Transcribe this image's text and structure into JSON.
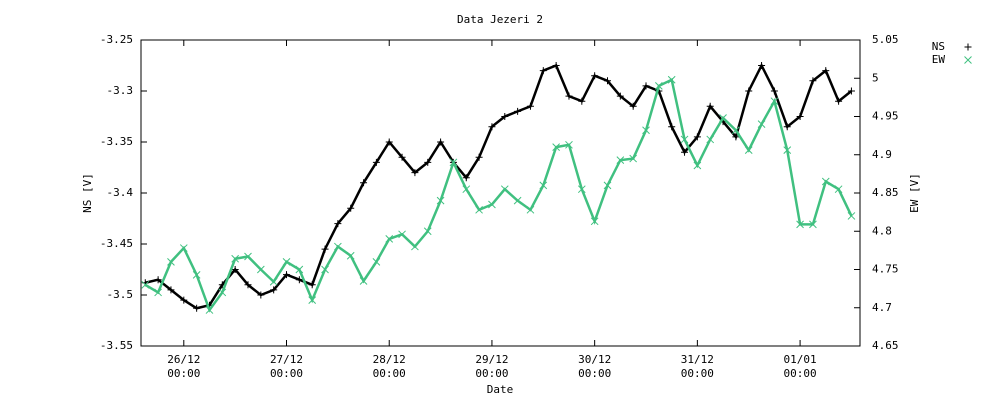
{
  "chart_data": {
    "type": "line",
    "title": "Data Jezeri 2",
    "x_label": "Date",
    "y_label": "NS [V]",
    "y2_label": "EW [V]",
    "xlim": [
      "25/12 14:00",
      "01/01 14:00"
    ],
    "xticks": [
      "26/12 00:00",
      "27/12 00:00",
      "28/12 00:00",
      "29/12 00:00",
      "30/12 00:00",
      "31/12 00:00",
      "01/01 00:00"
    ],
    "ylim": [
      -3.55,
      -3.25
    ],
    "yticks": [
      -3.55,
      -3.5,
      -3.45,
      -3.4,
      -3.35,
      -3.3,
      -3.25
    ],
    "y2lim": [
      4.65,
      5.05
    ],
    "y2ticks": [
      4.65,
      4.7,
      4.75,
      4.8,
      4.85,
      4.9,
      4.95,
      5,
      5.05
    ],
    "grid": false,
    "legend": "top-right",
    "x": [
      "25/12 15:00",
      "25/12 18:00",
      "25/12 21:00",
      "26/12 00:00",
      "26/12 03:00",
      "26/12 06:00",
      "26/12 09:00",
      "26/12 12:00",
      "26/12 15:00",
      "26/12 18:00",
      "26/12 21:00",
      "27/12 00:00",
      "27/12 03:00",
      "27/12 06:00",
      "27/12 09:00",
      "27/12 12:00",
      "27/12 15:00",
      "27/12 18:00",
      "27/12 21:00",
      "28/12 00:00",
      "28/12 03:00",
      "28/12 06:00",
      "28/12 09:00",
      "28/12 12:00",
      "28/12 15:00",
      "28/12 18:00",
      "28/12 21:00",
      "29/12 00:00",
      "29/12 03:00",
      "29/12 06:00",
      "29/12 09:00",
      "29/12 12:00",
      "29/12 15:00",
      "29/12 18:00",
      "29/12 21:00",
      "30/12 00:00",
      "30/12 03:00",
      "30/12 06:00",
      "30/12 09:00",
      "30/12 12:00",
      "30/12 15:00",
      "30/12 18:00",
      "30/12 21:00",
      "31/12 00:00",
      "31/12 03:00",
      "31/12 06:00",
      "31/12 09:00",
      "31/12 12:00",
      "31/12 15:00",
      "31/12 18:00",
      "31/12 21:00",
      "01/01 00:00",
      "01/01 03:00",
      "01/01 06:00",
      "01/01 09:00",
      "01/01 12:00"
    ],
    "series": [
      {
        "name": "NS",
        "color": "#000000",
        "marker": "+",
        "values": [
          -3.488,
          -3.485,
          -3.495,
          -3.505,
          -3.513,
          -3.51,
          -3.49,
          -3.475,
          -3.49,
          -3.5,
          -3.495,
          -3.48,
          -3.485,
          -3.49,
          -3.455,
          -3.43,
          -3.415,
          -3.39,
          -3.37,
          -3.35,
          -3.365,
          -3.38,
          -3.37,
          -3.35,
          -3.37,
          -3.385,
          -3.365,
          -3.335,
          -3.325,
          -3.32,
          -3.315,
          -3.28,
          -3.275,
          -3.305,
          -3.31,
          -3.285,
          -3.29,
          -3.305,
          -3.315,
          -3.295,
          -3.3,
          -3.335,
          -3.36,
          -3.345,
          -3.315,
          -3.33,
          -3.345,
          -3.3,
          -3.275,
          -3.3,
          -3.335,
          -3.325,
          -3.29,
          -3.28,
          -3.31,
          -3.3
        ]
      },
      {
        "name": "EW",
        "color": "#40c080",
        "marker": "x",
        "axis": "y2",
        "values": [
          4.73,
          4.72,
          4.76,
          4.778,
          4.743,
          4.697,
          4.72,
          4.764,
          4.767,
          4.75,
          4.734,
          4.76,
          4.75,
          4.71,
          4.75,
          4.78,
          4.768,
          4.735,
          4.76,
          4.79,
          4.796,
          4.78,
          4.8,
          4.84,
          4.89,
          4.855,
          4.828,
          4.835,
          4.855,
          4.84,
          4.828,
          4.86,
          4.91,
          4.913,
          4.855,
          4.813,
          4.86,
          4.893,
          4.895,
          4.932,
          4.99,
          4.998,
          4.92,
          4.886,
          4.92,
          4.948,
          4.932,
          4.906,
          4.94,
          4.97,
          4.906,
          4.809,
          4.809,
          4.865,
          4.855,
          4.82
        ]
      }
    ]
  }
}
